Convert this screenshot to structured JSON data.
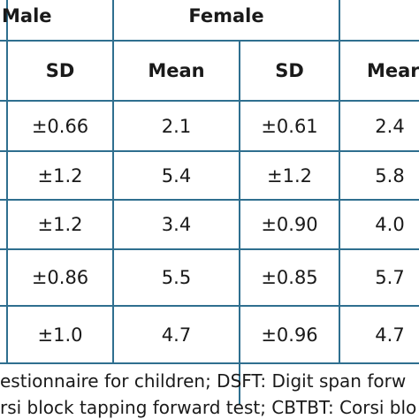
{
  "header": {
    "group_male": "Male",
    "group_female": "Female",
    "sub_headers": [
      "SD",
      "Mean",
      "SD",
      "Mear"
    ]
  },
  "rows": [
    [
      "±0.66",
      "2.1",
      "±0.61",
      "2.4"
    ],
    [
      "±1.2",
      "5.4",
      "±1.2",
      "5.8"
    ],
    [
      "±1.2",
      "3.4",
      "±0.90",
      "4.0"
    ],
    [
      "±0.86",
      "5.5",
      "±0.85",
      "5.7"
    ],
    [
      "±1.0",
      "4.7",
      "±0.96",
      "4.7"
    ]
  ],
  "footnote": {
    "line1": "estionnaire for children; DSFT: Digit span forw",
    "line2": "rsi block tapping forward test; CBTBT: Corsi blo"
  },
  "colors": {
    "border": "#2f6f8f",
    "text": "#1a1a1a"
  }
}
